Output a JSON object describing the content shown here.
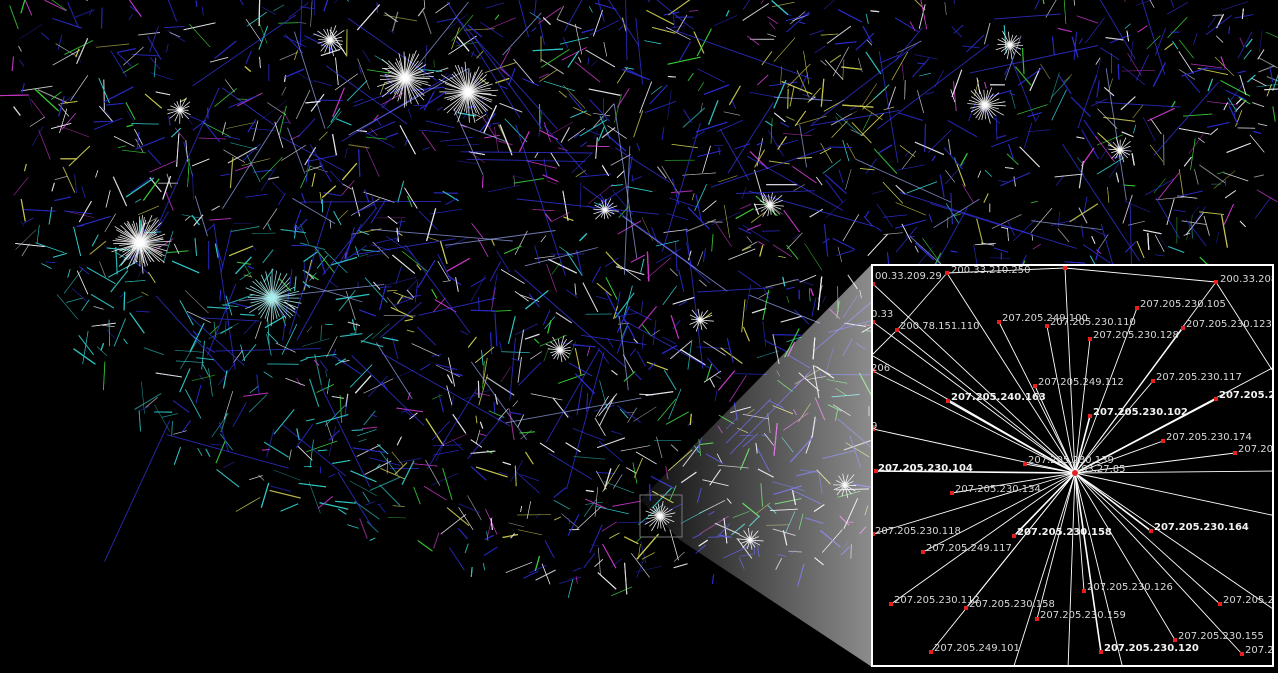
{
  "figure": {
    "description_colors": {
      "background": "#000000",
      "link_blue": "#2a2ac8",
      "link_white": "#e8e8f0",
      "link_cyan": "#30c8c8",
      "link_green": "#38c838",
      "link_yellow": "#c8c850",
      "link_magenta": "#c838c8",
      "node_red": "#e52020",
      "inset_border": "#ffffff"
    },
    "inset": {
      "hub_label": "63.27.85",
      "nodes": [
        {
          "id": "n1",
          "label": "200.33.210.250"
        },
        {
          "id": "n2",
          "label": "00.33.209.29"
        },
        {
          "id": "n3",
          "label": "00.33.213.97"
        },
        {
          "id": "n4",
          "label": "200.33.208"
        },
        {
          "id": "n5",
          "label": "0.33"
        },
        {
          "id": "n6",
          "label": "200.78.151.110"
        },
        {
          "id": "n7",
          "label": "207.205.249.100"
        },
        {
          "id": "n8",
          "label": "207.205.230.110"
        },
        {
          "id": "n9",
          "label": "207.205.230.105"
        },
        {
          "id": "n10",
          "label": "207.205.230.128"
        },
        {
          "id": "n11",
          "label": "207.205.230.123"
        },
        {
          "id": "n12",
          "label": "206"
        },
        {
          "id": "n13",
          "label": "207.205.249.112"
        },
        {
          "id": "n14",
          "label": "207.205.230.117"
        },
        {
          "id": "n15",
          "label": "207.205.240.163",
          "bold": true
        },
        {
          "id": "n16",
          "label": "207.205.230.102",
          "bold": true
        },
        {
          "id": "n17",
          "label": "207.205.249",
          "bold": true
        },
        {
          "id": "n18",
          "label": "9"
        },
        {
          "id": "n19",
          "label": "207.205.230.174"
        },
        {
          "id": "n20",
          "label": "207.205.230.139"
        },
        {
          "id": "n21",
          "label": "207.205"
        },
        {
          "id": "n22",
          "label": "207.205.230.104",
          "bold": true
        },
        {
          "id": "n23",
          "label": "207.205.230.134"
        },
        {
          "id": "n24",
          "label": "207.205.230.118"
        },
        {
          "id": "n25",
          "label": "207.205.230.158",
          "bold": true
        },
        {
          "id": "n26",
          "label": "207.205.230.164",
          "bold": true
        },
        {
          "id": "n27",
          "label": "207.205.249.117"
        },
        {
          "id": "n28",
          "label": "207.205.230.126"
        },
        {
          "id": "n29",
          "label": "207.205.230.112"
        },
        {
          "id": "n30",
          "label": "207.205.230.158"
        },
        {
          "id": "n31",
          "label": "207.205.230.159"
        },
        {
          "id": "n32",
          "label": "207.205.24"
        },
        {
          "id": "n33",
          "label": "207.205.230.155"
        },
        {
          "id": "n34",
          "label": "207.205.249.101"
        },
        {
          "id": "n35",
          "label": "207.205.230.120",
          "bold": true
        },
        {
          "id": "n36",
          "label": "207.20"
        }
      ]
    }
  }
}
